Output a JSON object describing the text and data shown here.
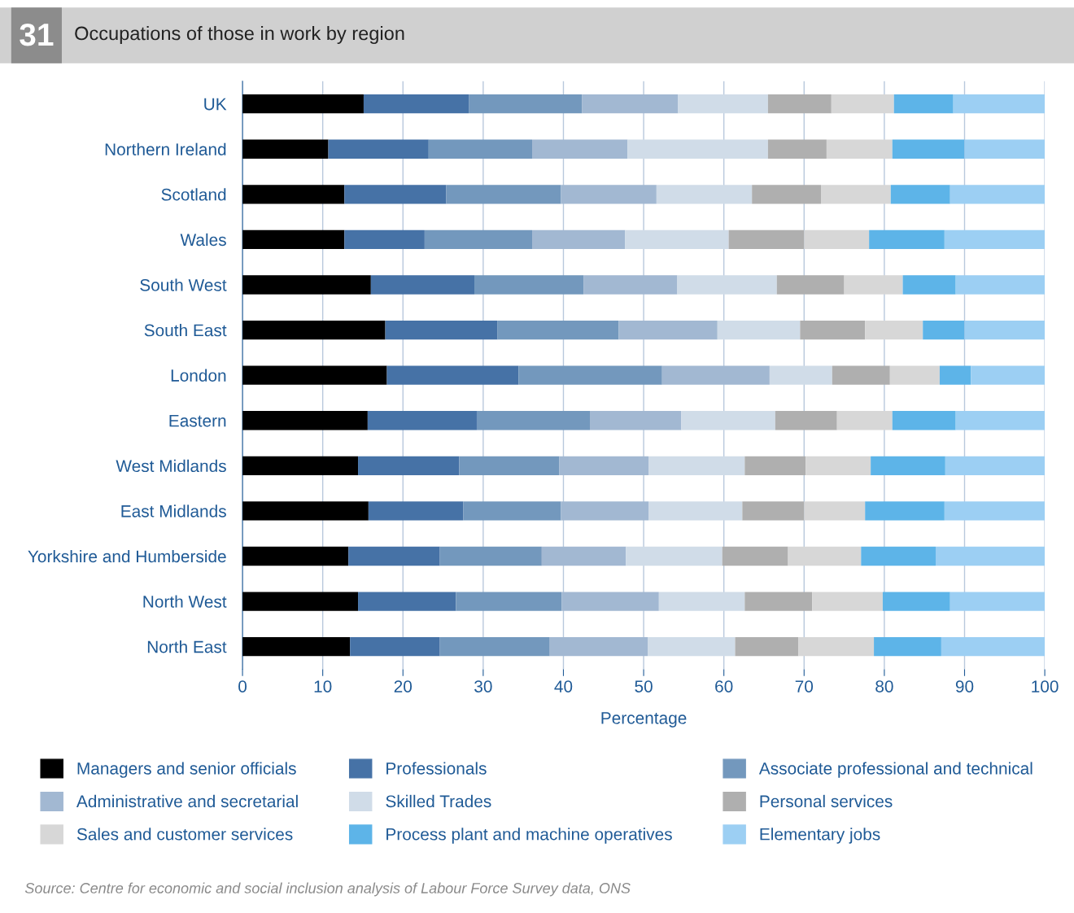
{
  "chart_data": {
    "type": "bar",
    "orientation": "horizontal",
    "stacked": true,
    "title": "Occupations of those in work by region",
    "xlabel": "Percentage",
    "annotations": [
      "31",
      "Source: Centre for economic and social inclusion analysis of Labour Force Survey data, ONS"
    ],
    "categories": [
      "UK",
      "Northern Ireland",
      "Scotland",
      "Wales",
      "South West",
      "South East",
      "London",
      "Eastern",
      "West Midlands",
      "East Midlands",
      "Yorkshire and Humberside",
      "North West",
      "North East"
    ],
    "xlim": [
      0,
      100
    ],
    "xticks": [
      0,
      10,
      20,
      30,
      40,
      50,
      60,
      70,
      80,
      90,
      100
    ],
    "grid": "x",
    "legend": "bottom",
    "series": [
      {
        "name": "Managers and senior officials",
        "color": "#000000",
        "values": [
          15.1,
          10.7,
          12.7,
          12.7,
          16.0,
          17.8,
          18.0,
          15.6,
          14.4,
          15.7,
          13.2,
          14.4,
          13.4
        ]
      },
      {
        "name": "Professionals",
        "color": "#4672a6",
        "values": [
          13.1,
          12.5,
          12.7,
          10.0,
          12.9,
          14.0,
          16.4,
          13.6,
          12.6,
          11.8,
          11.4,
          12.2,
          11.2
        ]
      },
      {
        "name": "Associate professional and technical",
        "color": "#7398bd",
        "values": [
          14.1,
          12.9,
          14.3,
          13.4,
          13.6,
          15.1,
          17.9,
          14.1,
          12.5,
          12.2,
          12.7,
          13.2,
          13.7
        ]
      },
      {
        "name": "Administrative and secretarial",
        "color": "#a2b8d2",
        "values": [
          12.0,
          11.9,
          11.9,
          11.6,
          11.7,
          12.3,
          13.4,
          11.4,
          11.1,
          10.9,
          10.5,
          12.1,
          12.2
        ]
      },
      {
        "name": "Skilled Trades",
        "color": "#d0dce8",
        "values": [
          11.2,
          17.5,
          11.9,
          12.9,
          12.4,
          10.3,
          7.8,
          11.7,
          12.0,
          11.7,
          12.0,
          10.7,
          10.9
        ]
      },
      {
        "name": "Personal services",
        "color": "#afafaf",
        "values": [
          7.9,
          7.3,
          8.6,
          9.4,
          8.4,
          8.1,
          7.2,
          7.7,
          7.6,
          7.7,
          8.2,
          8.4,
          7.9
        ]
      },
      {
        "name": "Sales and customer services",
        "color": "#d7d7d7",
        "values": [
          7.8,
          8.2,
          8.7,
          8.1,
          7.3,
          7.2,
          6.2,
          6.9,
          8.1,
          7.6,
          9.1,
          8.8,
          9.4
        ]
      },
      {
        "name": "Process plant and machine operatives",
        "color": "#5db4e8",
        "values": [
          7.4,
          9.0,
          7.4,
          9.4,
          6.6,
          5.2,
          3.9,
          7.9,
          9.3,
          9.9,
          9.3,
          8.4,
          8.4
        ]
      },
      {
        "name": "Elementary jobs",
        "color": "#9ccff3",
        "values": [
          11.4,
          10.0,
          11.8,
          12.5,
          11.1,
          10.0,
          9.2,
          11.1,
          12.4,
          12.5,
          13.6,
          11.8,
          12.9
        ]
      }
    ]
  }
}
